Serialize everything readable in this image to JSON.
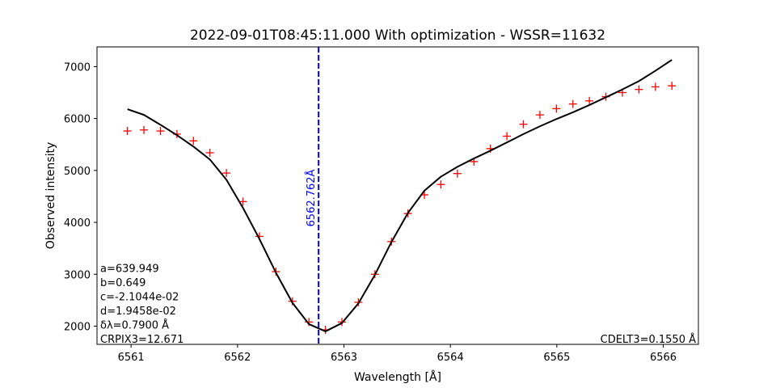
{
  "chart_data": {
    "type": "line",
    "title": "2022-09-01T08:45:11.000 With optimization - WSSR=11632",
    "xlabel": "Wavelength [Å]",
    "ylabel": "Observed intensity",
    "xlim": [
      6560.68,
      6566.33
    ],
    "ylim": [
      1650,
      7380
    ],
    "xticks": [
      6561,
      6562,
      6563,
      6564,
      6565,
      6566
    ],
    "yticks": [
      2000,
      3000,
      4000,
      5000,
      6000,
      7000
    ],
    "grid": false,
    "series": [
      {
        "style": "markers",
        "marker": "+",
        "color": "#ff0000",
        "x": [
          6560.966,
          6561.121,
          6561.276,
          6561.431,
          6561.586,
          6561.741,
          6561.896,
          6562.051,
          6562.206,
          6562.361,
          6562.516,
          6562.671,
          6562.826,
          6562.981,
          6563.136,
          6563.291,
          6563.446,
          6563.601,
          6563.756,
          6563.911,
          6564.066,
          6564.221,
          6564.376,
          6564.531,
          6564.686,
          6564.841,
          6564.996,
          6565.151,
          6565.306,
          6565.461,
          6565.616,
          6565.771,
          6565.926,
          6566.081
        ],
        "y": [
          5760,
          5780,
          5760,
          5700,
          5570,
          5340,
          4950,
          4400,
          3730,
          3050,
          2480,
          2080,
          1930,
          2080,
          2460,
          3000,
          3630,
          4170,
          4530,
          4730,
          4940,
          5170,
          5420,
          5660,
          5890,
          6070,
          6190,
          6280,
          6340,
          6420,
          6500,
          6560,
          6610,
          6630
        ]
      },
      {
        "style": "line",
        "color": "#000000",
        "x": [
          6560.966,
          6561.121,
          6561.276,
          6561.431,
          6561.586,
          6561.741,
          6561.896,
          6562.051,
          6562.206,
          6562.361,
          6562.516,
          6562.671,
          6562.826,
          6562.981,
          6563.136,
          6563.291,
          6563.446,
          6563.601,
          6563.756,
          6563.911,
          6564.066,
          6564.221,
          6564.376,
          6564.531,
          6564.686,
          6564.841,
          6564.996,
          6565.151,
          6565.306,
          6565.461,
          6565.616,
          6565.771,
          6565.926,
          6566.081
        ],
        "y": [
          6180,
          6070,
          5880,
          5680,
          5460,
          5210,
          4820,
          4280,
          3680,
          3030,
          2450,
          2040,
          1900,
          2060,
          2440,
          2990,
          3620,
          4180,
          4610,
          4880,
          5070,
          5230,
          5380,
          5540,
          5700,
          5850,
          5990,
          6120,
          6260,
          6410,
          6560,
          6720,
          6920,
          7130
        ]
      }
    ],
    "vline": {
      "x": 6562.762,
      "label": "6562.762Å",
      "color": "#0000ff",
      "style": "dashed"
    },
    "annotations": {
      "params": [
        "a=639.949",
        "b=0.649",
        "c=-2.1044e-02",
        "d=1.9458e-02",
        "δλ=0.7900 Å",
        "CRPIX3=12.671"
      ],
      "cdelt": "CDELT3=0.1550 Å"
    }
  }
}
